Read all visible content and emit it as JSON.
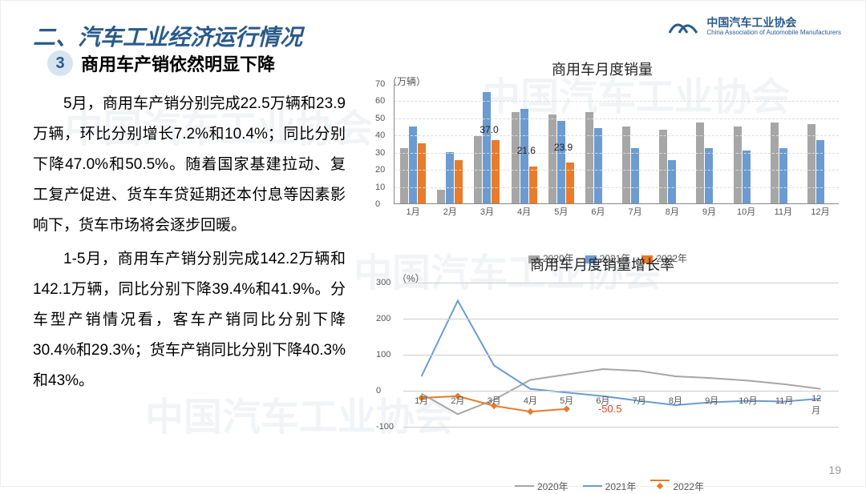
{
  "header": {
    "title": "二、汽车工业经济运行情况",
    "logo_main": "中国汽车工业协会",
    "logo_sub": "China Association of Automobile Manufacturers"
  },
  "subtitle": {
    "number": "3",
    "text": "商用车产销依然明显下降"
  },
  "paragraphs": {
    "p1": "5月，商用车产销分别完成22.5万辆和23.9万辆，环比分别增长7.2%和10.4%；同比分别下降47.0%和50.5%。随着国家基建拉动、复工复产促进、货车车贷延期还本付息等因素影响下，货车市场将会逐步回暖。",
    "p2": "1-5月，商用车产销分别完成142.2万辆和142.1万辆，同比分别下降39.4%和41.9%。分车型产销情况看，客车产销同比分别下降30.4%和29.3%；货车产销同比分别下降40.3%和43%。"
  },
  "page_number": "19",
  "bar_chart": {
    "title": "商用车月度销量",
    "y_unit": "（万辆）",
    "ylim": [
      0,
      70
    ],
    "ytick_step": 10,
    "categories": [
      "1月",
      "2月",
      "3月",
      "4月",
      "5月",
      "6月",
      "7月",
      "8月",
      "9月",
      "10月",
      "11月",
      "12月"
    ],
    "series": [
      {
        "name": "2020年",
        "color": "#a6a6a6",
        "values": [
          32,
          8,
          39,
          53,
          52,
          53,
          45,
          43,
          47,
          45,
          47,
          46
        ]
      },
      {
        "name": "2021年",
        "color": "#6b9bd1",
        "values": [
          45,
          30,
          65,
          55,
          48,
          44,
          32,
          25,
          32,
          31,
          32,
          37
        ]
      },
      {
        "name": "2022年",
        "color": "#e87c2a",
        "values": [
          35,
          25,
          37,
          21.6,
          23.9,
          null,
          null,
          null,
          null,
          null,
          null,
          null
        ]
      }
    ],
    "annotations": [
      {
        "text": "37.0",
        "month_index": 2,
        "y": 40
      },
      {
        "text": "21.6",
        "month_index": 3,
        "y": 28
      },
      {
        "text": "23.9",
        "month_index": 4,
        "y": 30
      }
    ],
    "legend_bg": "#f0f0f0"
  },
  "line_chart": {
    "title": "商用车月度销量增长率",
    "y_unit": "（%）",
    "ylim": [
      -100,
      300
    ],
    "yticks": [
      -100,
      0,
      100,
      200,
      300
    ],
    "categories": [
      "1月",
      "2月",
      "3月",
      "4月",
      "5月",
      "6月",
      "7月",
      "8月",
      "9月",
      "10月",
      "11月",
      "12月"
    ],
    "series": [
      {
        "name": "2020年",
        "color": "#a6a6a6",
        "width": 2,
        "marker": false,
        "values": [
          -8,
          -65,
          -25,
          30,
          45,
          60,
          55,
          40,
          35,
          28,
          18,
          5
        ]
      },
      {
        "name": "2021年",
        "color": "#6b9bd1",
        "width": 2,
        "marker": false,
        "values": [
          40,
          250,
          70,
          5,
          -5,
          -15,
          -28,
          -40,
          -32,
          -28,
          -30,
          -22
        ]
      },
      {
        "name": "2022年",
        "color": "#e87c2a",
        "width": 2,
        "marker": true,
        "values": [
          -20,
          -15,
          -42,
          -58,
          -50.5,
          null,
          null,
          null,
          null,
          null,
          null,
          null
        ]
      }
    ],
    "annotation": {
      "text": "-50.5",
      "color": "#d9472a",
      "month_index": 5,
      "y": -50
    }
  },
  "watermark_text": "中国汽车工业协会"
}
